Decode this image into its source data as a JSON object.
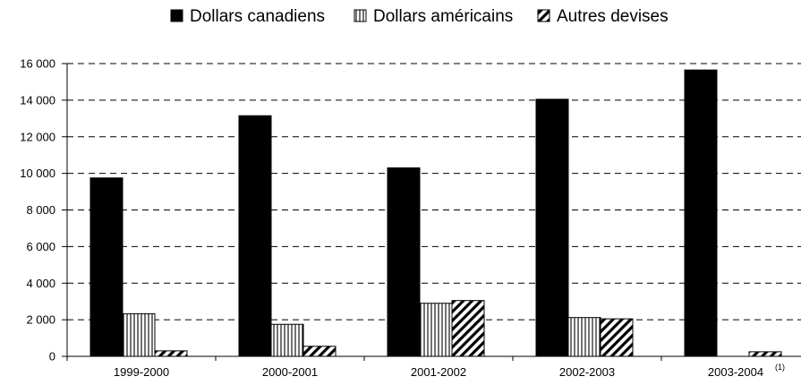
{
  "chart_data": {
    "type": "bar",
    "categories": [
      "1999-2000",
      "2000-2001",
      "2001-2002",
      "2002-2003",
      "2003-2004"
    ],
    "category_notes": [
      "",
      "",
      "",
      "",
      "(1)"
    ],
    "series": [
      {
        "name": "Dollars canadiens",
        "values": [
          9750,
          13150,
          10300,
          14050,
          15650
        ],
        "color": "#000000",
        "pattern": "solid"
      },
      {
        "name": "Dollars américains",
        "values": [
          2330,
          1750,
          2900,
          2120,
          0
        ],
        "color": "#000000",
        "pattern": "vertical-lines"
      },
      {
        "name": "Autres devises",
        "values": [
          300,
          550,
          3050,
          2050,
          250
        ],
        "color": "#000000",
        "pattern": "diagonal-lines"
      }
    ],
    "y_ticks": [
      {
        "value": 0,
        "label": "0"
      },
      {
        "value": 2000,
        "label": "2 000"
      },
      {
        "value": 4000,
        "label": "4 000"
      },
      {
        "value": 6000,
        "label": "6 000"
      },
      {
        "value": 8000,
        "label": "8 000"
      },
      {
        "value": 10000,
        "label": "10 000"
      },
      {
        "value": 12000,
        "label": "12 000"
      },
      {
        "value": 14000,
        "label": "14 000"
      },
      {
        "value": 16000,
        "label": "16 000"
      }
    ],
    "ylim": [
      0,
      16000
    ],
    "grid": "horizontal-dashed",
    "legend_position": "top"
  }
}
